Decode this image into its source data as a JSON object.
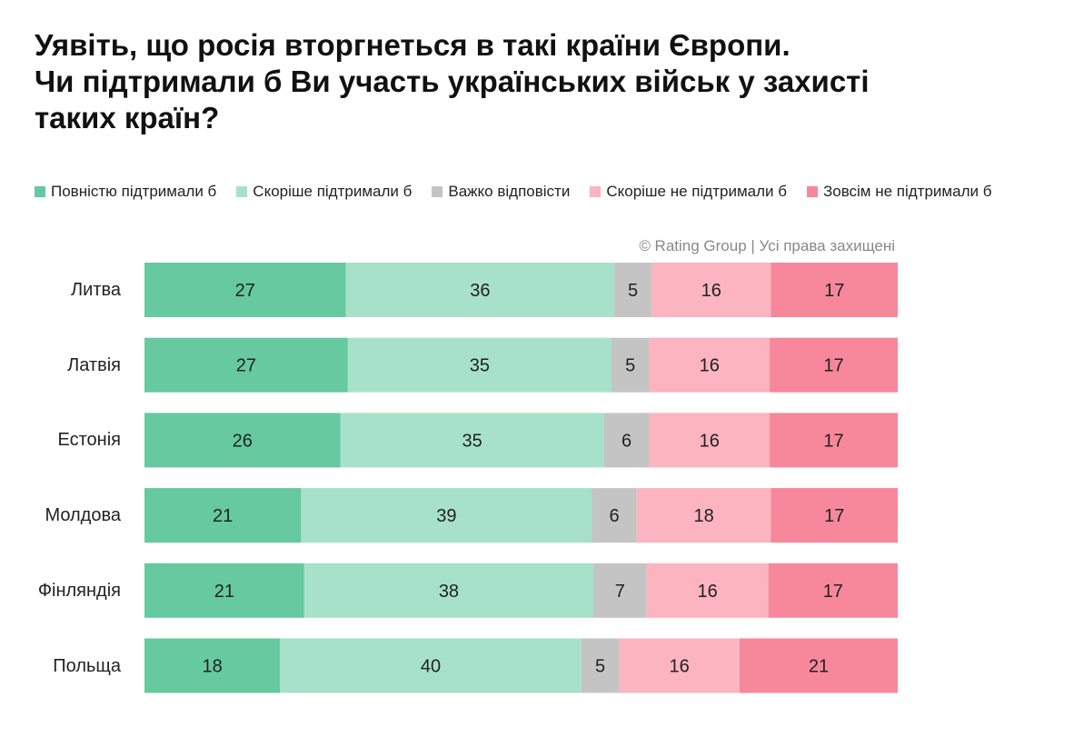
{
  "title_lines": [
    "Уявіть, що росія вторгнеться в такі країни Європи.",
    "Чи підтримали б Ви участь українських військ у захисті",
    "таких країн?"
  ],
  "credit": "© Rating Group | Усі права захищені",
  "chart_data": {
    "type": "bar",
    "orientation": "horizontal",
    "stacked": true,
    "normalized": true,
    "legend_position": "top",
    "grid": false,
    "categories": [
      "Литва",
      "Латвія",
      "Естонія",
      "Молдова",
      "Фінляндія",
      "Польща"
    ],
    "series": [
      {
        "name": "Повністю підтримали б",
        "color": "#66c9a0",
        "values": [
          27,
          27,
          26,
          21,
          21,
          18
        ]
      },
      {
        "name": "Скоріше підтримали б",
        "color": "#a7e1c9",
        "values": [
          36,
          35,
          35,
          39,
          38,
          40
        ]
      },
      {
        "name": "Важко відповісти",
        "color": "#c4c4c4",
        "values": [
          5,
          5,
          6,
          6,
          7,
          5
        ]
      },
      {
        "name": "Скоріше не підтримали б",
        "color": "#fbb4c0",
        "values": [
          16,
          16,
          16,
          18,
          16,
          16
        ]
      },
      {
        "name": "Зовсім не підтримали б",
        "color": "#f7879b",
        "values": [
          17,
          17,
          17,
          17,
          17,
          21
        ]
      }
    ]
  }
}
